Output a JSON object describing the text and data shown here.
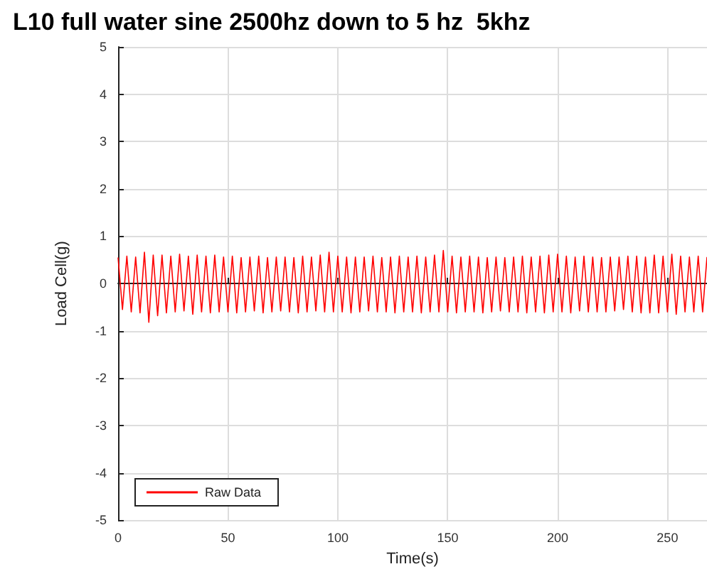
{
  "chart_data": {
    "type": "line",
    "title": "L10 full water sine 2500hz down to 5 hz  5khz",
    "xlabel": "Time(s)",
    "ylabel": "Load Cell(g)",
    "xlim": [
      0,
      268
    ],
    "xticks": [
      0,
      50,
      100,
      150,
      200,
      250
    ],
    "ylim": [
      -5,
      5
    ],
    "yticks": [
      -5,
      -4,
      -3,
      -2,
      -1,
      0,
      1,
      2,
      3,
      4,
      5
    ],
    "grid": true,
    "legend": "bottom left",
    "marker": "none",
    "line_style": "solid",
    "series": [
      {
        "name": "Raw Data",
        "color": "#ff0000",
        "x": [
          0,
          2,
          4,
          6,
          8,
          10,
          12,
          14,
          16,
          18,
          20,
          22,
          24,
          26,
          28,
          30,
          32,
          34,
          36,
          38,
          40,
          42,
          44,
          46,
          48,
          50,
          52,
          54,
          56,
          58,
          60,
          62,
          64,
          66,
          68,
          70,
          72,
          74,
          76,
          78,
          80,
          82,
          84,
          86,
          88,
          90,
          92,
          94,
          96,
          98,
          100,
          102,
          104,
          106,
          108,
          110,
          112,
          114,
          116,
          118,
          120,
          122,
          124,
          126,
          128,
          130,
          132,
          134,
          136,
          138,
          140,
          142,
          144,
          146,
          148,
          150,
          152,
          154,
          156,
          158,
          160,
          162,
          164,
          166,
          168,
          170,
          172,
          174,
          176,
          178,
          180,
          182,
          184,
          186,
          188,
          190,
          192,
          194,
          196,
          198,
          200,
          202,
          204,
          206,
          208,
          210,
          212,
          214,
          216,
          218,
          220,
          222,
          224,
          226,
          228,
          230,
          232,
          234,
          236,
          238,
          240,
          242,
          244,
          246,
          248,
          250,
          252,
          254,
          256,
          258,
          260,
          262,
          264,
          266,
          268
        ],
        "values": [
          0.55,
          -0.55,
          0.58,
          -0.6,
          0.56,
          -0.62,
          0.66,
          -0.82,
          0.6,
          -0.68,
          0.6,
          -0.62,
          0.58,
          -0.6,
          0.62,
          -0.58,
          0.58,
          -0.65,
          0.6,
          -0.6,
          0.58,
          -0.62,
          0.6,
          -0.6,
          0.56,
          -0.6,
          0.58,
          -0.62,
          0.55,
          -0.6,
          0.56,
          -0.58,
          0.58,
          -0.62,
          0.55,
          -0.6,
          0.56,
          -0.58,
          0.56,
          -0.6,
          0.55,
          -0.62,
          0.58,
          -0.6,
          0.56,
          -0.58,
          0.6,
          -0.6,
          0.66,
          -0.6,
          0.58,
          -0.6,
          0.56,
          -0.62,
          0.56,
          -0.6,
          0.56,
          -0.58,
          0.58,
          -0.6,
          0.55,
          -0.6,
          0.56,
          -0.62,
          0.58,
          -0.6,
          0.56,
          -0.6,
          0.58,
          -0.62,
          0.56,
          -0.6,
          0.6,
          -0.6,
          0.7,
          -0.6,
          0.58,
          -0.62,
          0.56,
          -0.6,
          0.58,
          -0.6,
          0.56,
          -0.62,
          0.55,
          -0.6,
          0.56,
          -0.58,
          0.55,
          -0.6,
          0.56,
          -0.6,
          0.58,
          -0.62,
          0.56,
          -0.6,
          0.58,
          -0.62,
          0.6,
          -0.6,
          0.62,
          -0.6,
          0.58,
          -0.62,
          0.56,
          -0.58,
          0.58,
          -0.6,
          0.56,
          -0.6,
          0.55,
          -0.6,
          0.56,
          -0.58,
          0.56,
          -0.55,
          0.58,
          -0.6,
          0.58,
          -0.62,
          0.56,
          -0.62,
          0.6,
          -0.62,
          0.58,
          -0.6,
          0.62,
          -0.65,
          0.58,
          -0.6,
          0.56,
          -0.6,
          0.58,
          -0.6,
          0.56
        ]
      }
    ]
  }
}
